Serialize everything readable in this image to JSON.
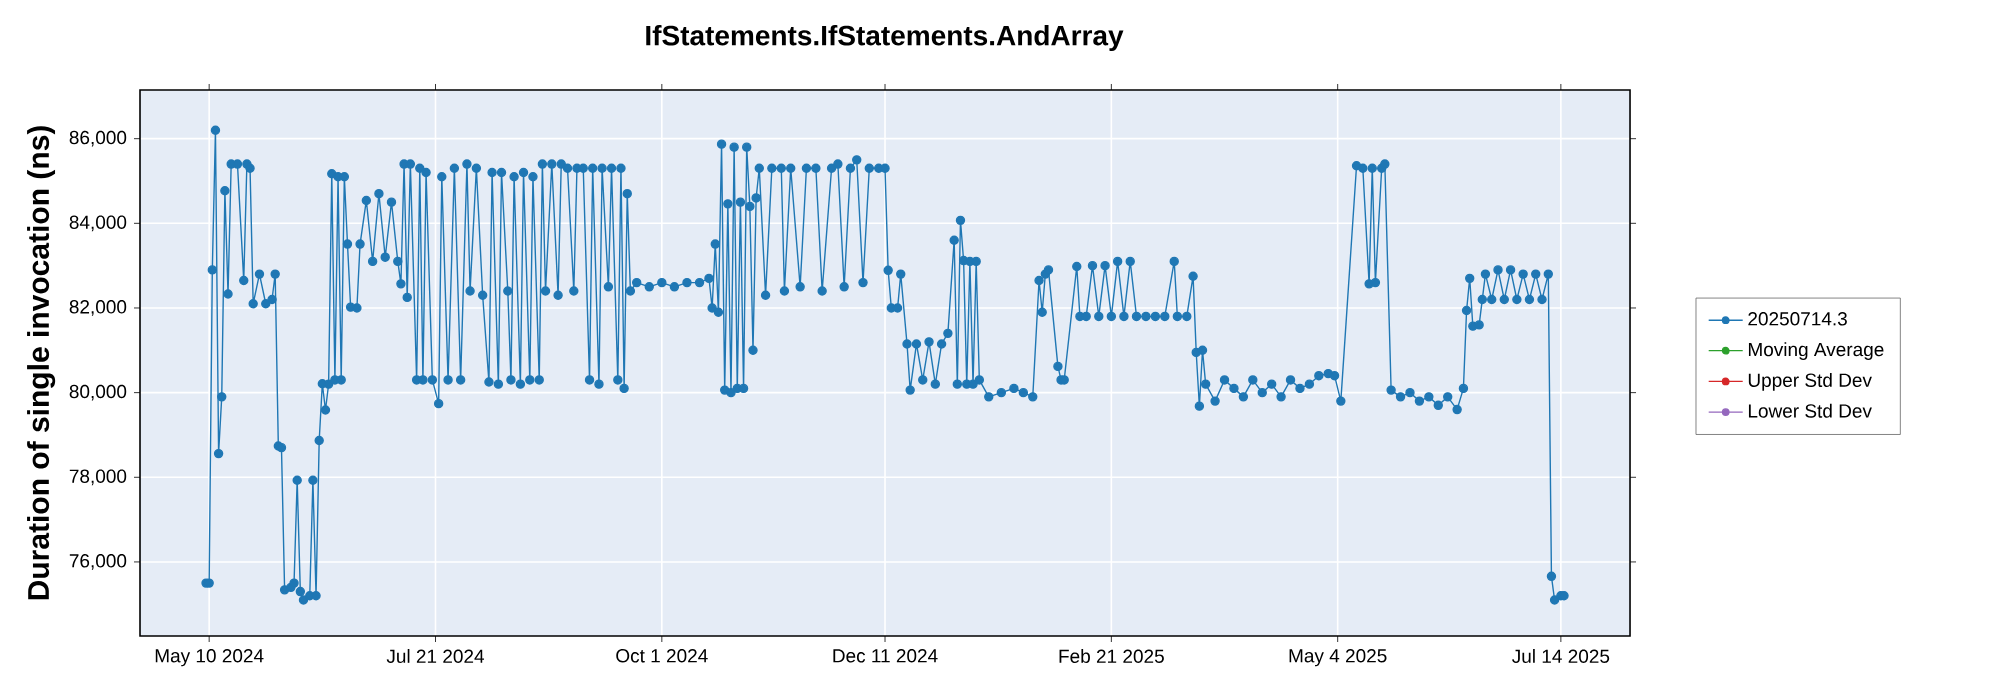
{
  "chart_data": {
    "type": "line",
    "title": "IfStatements.IfStatements.AndArray",
    "ylabel": "Duration of single invocation (ns)",
    "xlim": [
      "2024-04-18",
      "2025-08-05"
    ],
    "ylim": [
      74250,
      87150
    ],
    "xticks": [
      {
        "value": "2024-05-10",
        "label": "May 10 2024"
      },
      {
        "value": "2024-07-21",
        "label": "Jul 21 2024"
      },
      {
        "value": "2024-10-01",
        "label": "Oct 1 2024"
      },
      {
        "value": "2024-12-11",
        "label": "Dec 11 2024"
      },
      {
        "value": "2025-02-21",
        "label": "Feb 21 2025"
      },
      {
        "value": "2025-05-04",
        "label": "May 4 2025"
      },
      {
        "value": "2025-07-14",
        "label": "Jul 14 2025"
      }
    ],
    "yticks": [
      {
        "value": 76000,
        "label": "76,000"
      },
      {
        "value": 78000,
        "label": "78,000"
      },
      {
        "value": 80000,
        "label": "80,000"
      },
      {
        "value": 82000,
        "label": "82,000"
      },
      {
        "value": 84000,
        "label": "84,000"
      },
      {
        "value": 86000,
        "label": "86,000"
      }
    ],
    "grid": true,
    "legend": "right",
    "marker": "circle",
    "series": [
      {
        "name": "20250714.3",
        "color": "#1f77b4",
        "x": [
          "2024-05-09",
          "2024-05-10",
          "2024-05-11",
          "2024-05-12",
          "2024-05-13",
          "2024-05-14",
          "2024-05-15",
          "2024-05-16",
          "2024-05-17",
          "2024-05-19",
          "2024-05-21",
          "2024-05-22",
          "2024-05-23",
          "2024-05-24",
          "2024-05-26",
          "2024-05-28",
          "2024-05-30",
          "2024-05-31",
          "2024-06-01",
          "2024-06-02",
          "2024-06-03",
          "2024-06-05",
          "2024-06-06",
          "2024-06-07",
          "2024-06-08",
          "2024-06-09",
          "2024-06-11",
          "2024-06-12",
          "2024-06-13",
          "2024-06-14",
          "2024-06-15",
          "2024-06-16",
          "2024-06-17",
          "2024-06-18",
          "2024-06-19",
          "2024-06-20",
          "2024-06-21",
          "2024-06-22",
          "2024-06-23",
          "2024-06-24",
          "2024-06-26",
          "2024-06-27",
          "2024-06-29",
          "2024-07-01",
          "2024-07-03",
          "2024-07-05",
          "2024-07-07",
          "2024-07-09",
          "2024-07-10",
          "2024-07-11",
          "2024-07-12",
          "2024-07-13",
          "2024-07-15",
          "2024-07-16",
          "2024-07-17",
          "2024-07-18",
          "2024-07-20",
          "2024-07-22",
          "2024-07-23",
          "2024-07-25",
          "2024-07-27",
          "2024-07-29",
          "2024-07-31",
          "2024-08-01",
          "2024-08-03",
          "2024-08-05",
          "2024-08-07",
          "2024-08-08",
          "2024-08-10",
          "2024-08-11",
          "2024-08-13",
          "2024-08-14",
          "2024-08-15",
          "2024-08-17",
          "2024-08-18",
          "2024-08-20",
          "2024-08-21",
          "2024-08-23",
          "2024-08-24",
          "2024-08-25",
          "2024-08-27",
          "2024-08-29",
          "2024-08-30",
          "2024-09-01",
          "2024-09-03",
          "2024-09-04",
          "2024-09-06",
          "2024-09-08",
          "2024-09-09",
          "2024-09-11",
          "2024-09-12",
          "2024-09-14",
          "2024-09-15",
          "2024-09-17",
          "2024-09-18",
          "2024-09-19",
          "2024-09-20",
          "2024-09-21",
          "2024-09-23",
          "2024-09-27",
          "2024-10-01",
          "2024-10-05",
          "2024-10-09",
          "2024-10-13",
          "2024-10-16",
          "2024-10-17",
          "2024-10-18",
          "2024-10-19",
          "2024-10-20",
          "2024-10-21",
          "2024-10-22",
          "2024-10-23",
          "2024-10-24",
          "2024-10-25",
          "2024-10-26",
          "2024-10-27",
          "2024-10-28",
          "2024-10-29",
          "2024-10-30",
          "2024-10-31",
          "2024-11-01",
          "2024-11-03",
          "2024-11-05",
          "2024-11-08",
          "2024-11-09",
          "2024-11-11",
          "2024-11-14",
          "2024-11-16",
          "2024-11-19",
          "2024-11-21",
          "2024-11-24",
          "2024-11-26",
          "2024-11-28",
          "2024-11-30",
          "2024-12-02",
          "2024-12-04",
          "2024-12-06",
          "2024-12-09",
          "2024-12-11",
          "2024-12-12",
          "2024-12-13",
          "2024-12-15",
          "2024-12-16",
          "2024-12-18",
          "2024-12-19",
          "2024-12-21",
          "2024-12-23",
          "2024-12-25",
          "2024-12-27",
          "2024-12-29",
          "2024-12-31",
          "2025-01-02",
          "2025-01-03",
          "2025-01-04",
          "2025-01-05",
          "2025-01-06",
          "2025-01-07",
          "2025-01-08",
          "2025-01-09",
          "2025-01-10",
          "2025-01-13",
          "2025-01-17",
          "2025-01-21",
          "2025-01-24",
          "2025-01-27",
          "2025-01-29",
          "2025-01-30",
          "2025-01-31",
          "2025-02-01",
          "2025-02-04",
          "2025-02-05",
          "2025-02-06",
          "2025-02-10",
          "2025-02-11",
          "2025-02-13",
          "2025-02-15",
          "2025-02-17",
          "2025-02-19",
          "2025-02-21",
          "2025-02-23",
          "2025-02-25",
          "2025-02-27",
          "2025-03-01",
          "2025-03-04",
          "2025-03-07",
          "2025-03-10",
          "2025-03-13",
          "2025-03-14",
          "2025-03-17",
          "2025-03-19",
          "2025-03-20",
          "2025-03-21",
          "2025-03-22",
          "2025-03-23",
          "2025-03-26",
          "2025-03-29",
          "2025-04-01",
          "2025-04-04",
          "2025-04-07",
          "2025-04-10",
          "2025-04-13",
          "2025-04-16",
          "2025-04-19",
          "2025-04-22",
          "2025-04-25",
          "2025-04-28",
          "2025-05-01",
          "2025-05-03",
          "2025-05-05",
          "2025-05-10",
          "2025-05-12",
          "2025-05-14",
          "2025-05-15",
          "2025-05-16",
          "2025-05-18",
          "2025-05-19",
          "2025-05-21",
          "2025-05-24",
          "2025-05-27",
          "2025-05-30",
          "2025-06-02",
          "2025-06-05",
          "2025-06-08",
          "2025-06-11",
          "2025-06-13",
          "2025-06-14",
          "2025-06-15",
          "2025-06-16",
          "2025-06-18",
          "2025-06-19",
          "2025-06-20",
          "2025-06-22",
          "2025-06-24",
          "2025-06-26",
          "2025-06-28",
          "2025-06-30",
          "2025-07-02",
          "2025-07-04",
          "2025-07-06",
          "2025-07-08",
          "2025-07-10",
          "2025-07-11",
          "2025-07-12",
          "2025-07-14",
          "2025-07-15"
        ],
        "values": [
          75500,
          75500,
          82900,
          86200,
          78560,
          79900,
          84770,
          82330,
          85400,
          85400,
          82650,
          85400,
          85300,
          82100,
          82800,
          82100,
          82200,
          82800,
          78740,
          78700,
          75340,
          75400,
          75500,
          77930,
          75300,
          75100,
          75200,
          77930,
          75200,
          78870,
          80210,
          79590,
          80200,
          85170,
          80300,
          85100,
          80300,
          85100,
          83510,
          82020,
          82000,
          83510,
          84540,
          83100,
          84700,
          83200,
          84500,
          83100,
          82570,
          85400,
          82250,
          85400,
          80300,
          85300,
          80300,
          85200,
          80300,
          79740,
          85100,
          80300,
          85300,
          80300,
          85400,
          82400,
          85300,
          82300,
          80250,
          85200,
          80200,
          85200,
          82400,
          80300,
          85100,
          80200,
          85200,
          80300,
          85100,
          80300,
          85400,
          82400,
          85400,
          82300,
          85400,
          85300,
          82400,
          85300,
          85300,
          80300,
          85300,
          80200,
          85300,
          82500,
          85300,
          80300,
          85300,
          80100,
          84700,
          82400,
          82600,
          82500,
          82600,
          82500,
          82600,
          82600,
          82700,
          82000,
          83510,
          81900,
          85870,
          80060,
          84460,
          80000,
          85800,
          80100,
          84500,
          80100,
          85800,
          84400,
          81000,
          84600,
          85300,
          82300,
          85300,
          85300,
          82400,
          85300,
          82500,
          85300,
          85300,
          82400,
          85300,
          85400,
          82500,
          85300,
          85500,
          82600,
          85300,
          85300,
          85300,
          82890,
          82000,
          82000,
          82800,
          81150,
          80060,
          81150,
          80300,
          81200,
          80200,
          81150,
          81400,
          83600,
          80200,
          84070,
          83120,
          80200,
          83100,
          80200,
          83100,
          80300,
          79900,
          80000,
          80100,
          80000,
          79900,
          82650,
          81900,
          82800,
          82900,
          80620,
          80300,
          80300,
          82980,
          81800,
          81800,
          83000,
          81800,
          83000,
          81800,
          83100,
          81800,
          83100,
          81800,
          81800,
          81800,
          81800,
          83100,
          81800,
          81800,
          82750,
          80950,
          79680,
          81000,
          80200,
          79800,
          80300,
          80100,
          79900,
          80300,
          80000,
          80200,
          79900,
          80300,
          80100,
          80200,
          80400,
          80450,
          80400,
          79800,
          85360,
          85300,
          82570,
          85300,
          82600,
          85300,
          85400,
          80060,
          79900,
          80000,
          79800,
          79900,
          79700,
          79900,
          79600,
          80100,
          81940,
          82700,
          81570,
          81600,
          82200,
          82800,
          82200,
          82900,
          82200,
          82900,
          82200,
          82800,
          82200,
          82800,
          82200,
          82800,
          75660,
          75100,
          75200,
          75200
        ]
      },
      {
        "name": "Moving Average",
        "color": "#2ca02c"
      },
      {
        "name": "Upper Std Dev",
        "color": "#d62728"
      },
      {
        "name": "Lower Std Dev",
        "color": "#9467bd"
      }
    ]
  }
}
